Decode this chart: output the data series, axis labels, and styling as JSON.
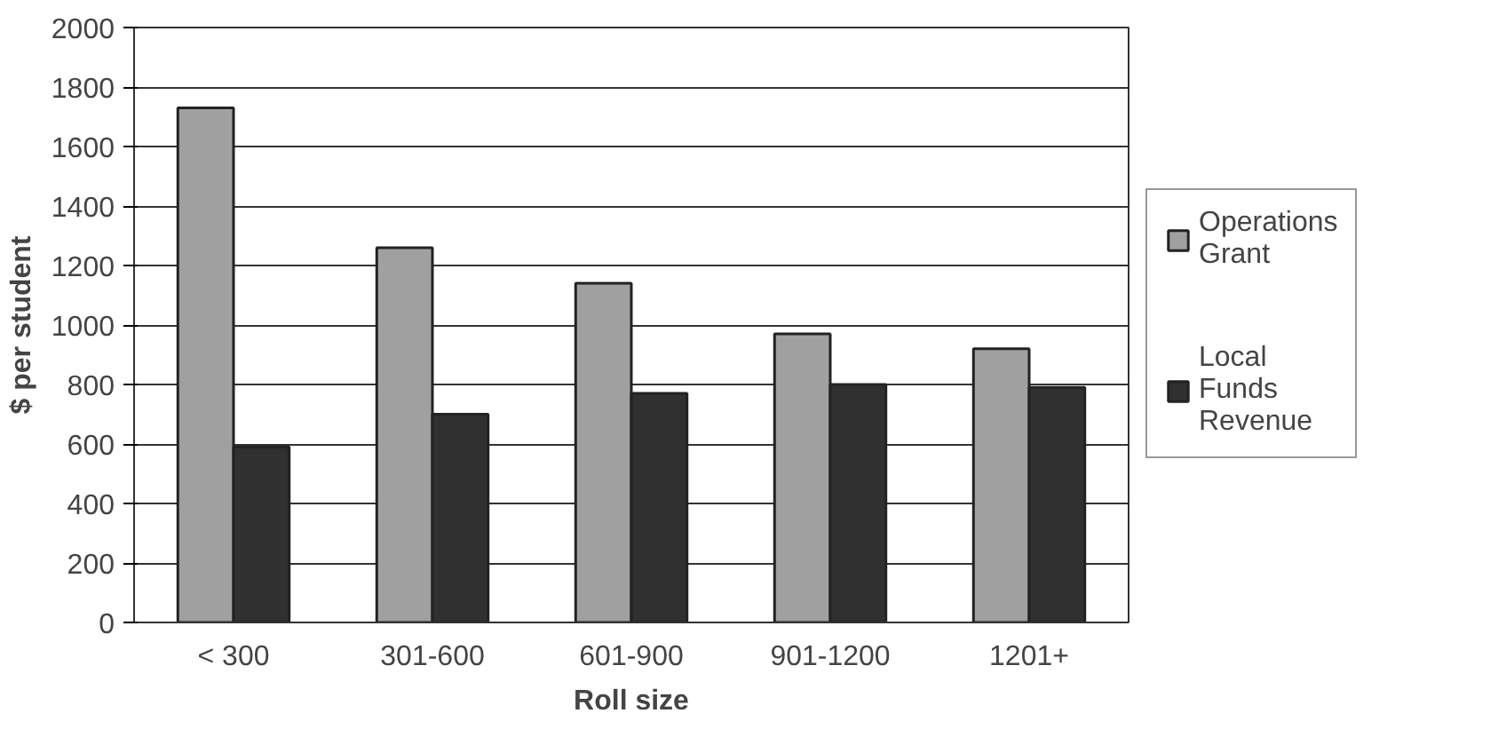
{
  "chart_data": {
    "type": "bar",
    "xlabel": "Roll size",
    "ylabel": "$ per student",
    "categories": [
      "< 300",
      "301-600",
      "601-900",
      "901-1200",
      "1201+"
    ],
    "series": [
      {
        "name": "Operations Grant",
        "color": "#a0a0a0",
        "values": [
          1730,
          1260,
          1140,
          970,
          920
        ]
      },
      {
        "name": "Local Funds Revenue",
        "color": "#303030",
        "values": [
          590,
          700,
          770,
          800,
          790
        ]
      }
    ],
    "ylim": [
      0,
      2000
    ],
    "yticks": [
      0,
      200,
      400,
      600,
      800,
      1000,
      1200,
      1400,
      1600,
      1800,
      2000
    ],
    "grid": "y",
    "legend": "right"
  }
}
